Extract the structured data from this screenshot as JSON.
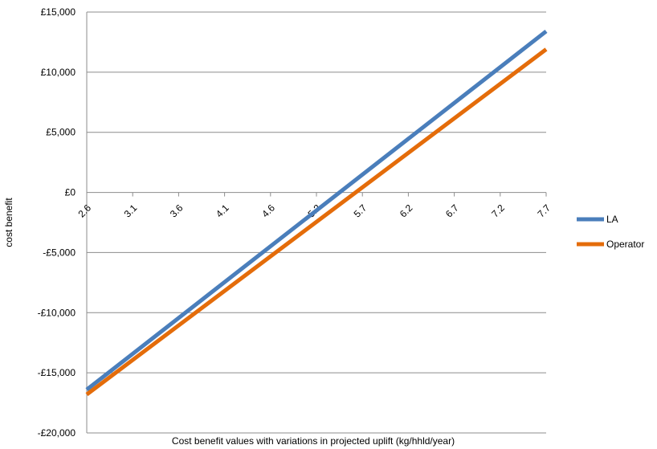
{
  "chart_data": {
    "type": "line",
    "title": "",
    "xlabel": "Cost benefit values with variations in projected uplift (kg/hhld/year)",
    "ylabel": "cost benefit",
    "x": [
      2.6,
      7.7
    ],
    "x_tick_labels": [
      "2.6",
      "3.1",
      "3.6",
      "4.1",
      "4.6",
      "5.2",
      "5.7",
      "6.2",
      "6.7",
      "7.2",
      "7.7"
    ],
    "y_tick_labels": [
      "£15,000",
      "£10,000",
      "£5,000",
      "£0",
      "-£5,000",
      "-£10,000",
      "-£15,000",
      "-£20,000"
    ],
    "ylim": [
      -20000,
      15000
    ],
    "y_ticks": [
      15000,
      10000,
      5000,
      0,
      -5000,
      -10000,
      -15000,
      -20000
    ],
    "grid": true,
    "legend_position": "right",
    "series": [
      {
        "name": "LA",
        "color": "#4A7EBB",
        "values": [
          -16400,
          13400
        ]
      },
      {
        "name": "Operator",
        "color": "#E46C0A",
        "values": [
          -16800,
          11900
        ]
      }
    ]
  }
}
